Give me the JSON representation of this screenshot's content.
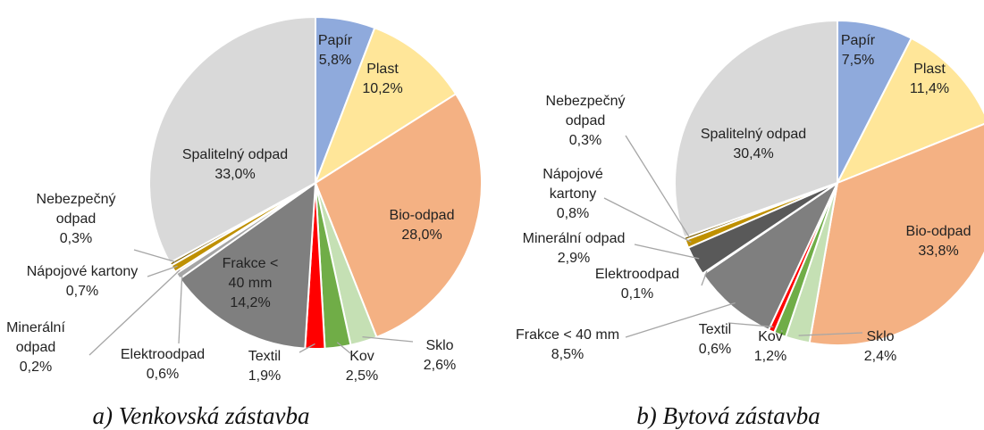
{
  "chart_data": [
    {
      "type": "pie",
      "title": "a) Venkovská zástavba",
      "categories": [
        "Papír",
        "Plast",
        "Bio-odpad",
        "Sklo",
        "Kov",
        "Textil",
        "Frakce < 40 mm",
        "Elektroodpad",
        "Minerální odpad",
        "Nápojové kartony",
        "Nebezpečný odpad",
        "Spalitelný odpad"
      ],
      "values": [
        5.8,
        10.2,
        28.0,
        2.6,
        2.5,
        1.9,
        14.2,
        0.6,
        0.2,
        0.7,
        0.3,
        33.0
      ],
      "value_labels": [
        "5,8%",
        "10,2%",
        "28,0%",
        "2,6%",
        "2,5%",
        "1,9%",
        "14,2%",
        "0,6%",
        "0,2%",
        "0,7%",
        "0,3%",
        "33,0%"
      ],
      "colors": [
        "#8faadc",
        "#ffe699",
        "#f4b183",
        "#c5e0b4",
        "#70ad47",
        "#ff0000",
        "#7f7f7f",
        "#a5a5a5",
        "#c55a11",
        "#bf9000",
        "#7f6000",
        "#d9d9d9"
      ]
    },
    {
      "type": "pie",
      "title": "b) Bytová zástavba",
      "categories": [
        "Papír",
        "Plast",
        "Bio-odpad",
        "Sklo",
        "Kov",
        "Textil",
        "Frakce < 40 mm",
        "Elektroodpad",
        "Minerální odpad",
        "Nápojové kartony",
        "Nebezpečný odpad",
        "Spalitelný odpad"
      ],
      "values": [
        7.5,
        11.4,
        33.8,
        2.4,
        1.2,
        0.6,
        8.5,
        0.1,
        2.9,
        0.8,
        0.3,
        30.4
      ],
      "value_labels": [
        "7,5%",
        "11,4%",
        "33,8%",
        "2,4%",
        "1,2%",
        "0,6%",
        "8,5%",
        "0,1%",
        "2,9%",
        "0,8%",
        "0,3%",
        "30,4%"
      ],
      "colors": [
        "#8faadc",
        "#ffe699",
        "#f4b183",
        "#c5e0b4",
        "#70ad47",
        "#ff0000",
        "#7f7f7f",
        "#a5a5a5",
        "#595959",
        "#bf9000",
        "#7f6000",
        "#d9d9d9"
      ]
    }
  ]
}
